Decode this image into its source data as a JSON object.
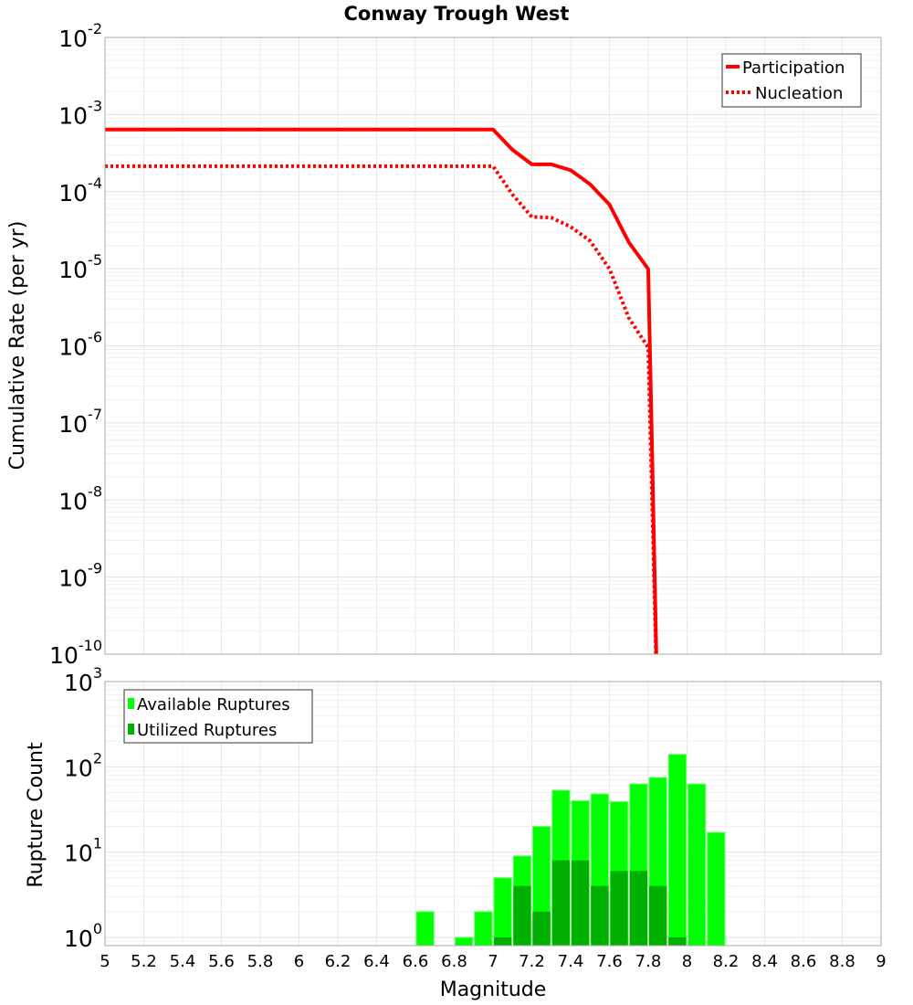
{
  "chart_data": [
    {
      "type": "line",
      "title": "Conway Trough West",
      "xlabel": "Magnitude",
      "ylabel": "Cumulative Rate (per yr)",
      "xlim": [
        5,
        9
      ],
      "ylim": [
        1e-10,
        0.01
      ],
      "yscale": "log",
      "grid": true,
      "legend_position": "top-right",
      "x_ticks": [
        "5",
        "5.2",
        "5.4",
        "5.6",
        "5.8",
        "6",
        "6.2",
        "6.4",
        "6.6",
        "6.8",
        "7",
        "7.2",
        "7.4",
        "7.6",
        "7.8",
        "8",
        "8.2",
        "8.4",
        "8.6",
        "8.8",
        "9"
      ],
      "y_tick_exponents": [
        "-2",
        "-3",
        "-4",
        "-5",
        "-6",
        "-7",
        "-8",
        "-9",
        "-10"
      ],
      "series": [
        {
          "name": "Participation",
          "color": "#ff0000",
          "style": "solid",
          "x": [
            5.0,
            7.0,
            7.1,
            7.2,
            7.3,
            7.4,
            7.5,
            7.6,
            7.7,
            7.8,
            7.85
          ],
          "y": [
            0.00064,
            0.00064,
            0.00035,
            0.000226,
            0.000226,
            0.00019,
            0.000125,
            6.8e-05,
            2.2e-05,
            9.9e-06,
            1e-11
          ]
        },
        {
          "name": "Nucleation",
          "color": "#ff0000",
          "style": "dotted",
          "x": [
            5.0,
            7.0,
            7.1,
            7.2,
            7.3,
            7.4,
            7.5,
            7.6,
            7.7,
            7.8,
            7.85
          ],
          "y": [
            0.000214,
            0.000214,
            9.2e-05,
            4.7e-05,
            4.6e-05,
            3.5e-05,
            2.3e-05,
            1e-05,
            2.3e-06,
            9.5e-07,
            1e-11
          ]
        }
      ]
    },
    {
      "type": "bar",
      "xlabel": "Magnitude",
      "ylabel": "Rupture Count",
      "xlim": [
        5,
        9
      ],
      "ylim": [
        0.8,
        1000
      ],
      "yscale": "log",
      "grid": true,
      "legend_position": "top-left",
      "y_tick_exponents": [
        "3",
        "2",
        "1",
        "0"
      ],
      "bin_width": 0.1,
      "bin_starts": [
        6.6,
        6.8,
        6.9,
        7.0,
        7.1,
        7.2,
        7.3,
        7.4,
        7.5,
        7.6,
        7.7,
        7.8,
        7.9,
        8.0,
        8.1
      ],
      "series": [
        {
          "name": "Available Ruptures",
          "color": "#00ff00",
          "values": [
            2,
            1,
            2,
            5,
            9,
            20,
            53,
            40,
            48,
            39,
            63,
            75,
            140,
            63,
            17
          ]
        },
        {
          "name": "Utilized Ruptures",
          "color": "#00b000",
          "values": [
            0,
            0,
            0,
            1,
            4,
            2,
            8,
            8,
            4,
            6,
            6,
            4,
            1,
            0,
            0
          ]
        }
      ]
    }
  ]
}
